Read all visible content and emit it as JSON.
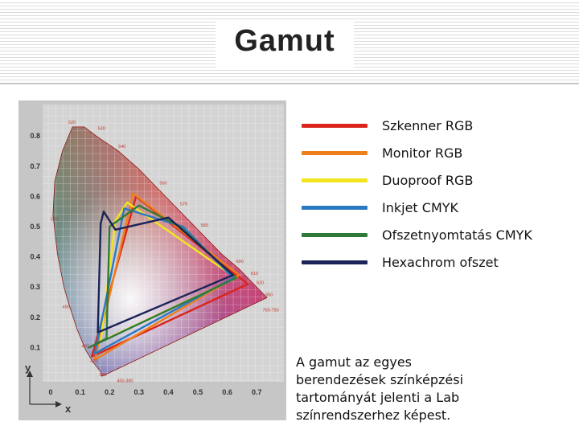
{
  "slide": {
    "title": "Gamut"
  },
  "legend": {
    "items": [
      {
        "label": "Szkenner RGB",
        "color": "#d9251c"
      },
      {
        "label": "Monitor RGB",
        "color": "#ef7f1a"
      },
      {
        "label": "Duoproof RGB",
        "color": "#f2e41f"
      },
      {
        "label": "Inkjet CMYK",
        "color": "#2a7ac2"
      },
      {
        "label": "Ofszetnyomtatás CMYK",
        "color": "#2f7a3a"
      },
      {
        "label": "Hexachrom ofszet",
        "color": "#1b2458"
      }
    ]
  },
  "caption": {
    "lines": [
      "A gamut az egyes",
      "berendezések színképzési",
      "tartományát jelenti a Lab",
      "színrendszerhez képest."
    ]
  },
  "chart_data": {
    "type": "scatter",
    "xlabel": "x",
    "ylabel": "y",
    "xlim": [
      0,
      0.8
    ],
    "ylim": [
      0,
      0.9
    ],
    "x_ticks": [
      "0",
      "0.1",
      "0.2",
      "0.3",
      "0.4",
      "0.5",
      "0.6",
      "0.7"
    ],
    "y_ticks": [
      "0.1",
      "0.2",
      "0.3",
      "0.4",
      "0.5",
      "0.6",
      "0.7",
      "0.8"
    ],
    "wavelength_labels": [
      "380",
      "470",
      "480",
      "490",
      "500",
      "520",
      "530",
      "540",
      "560",
      "570",
      "580",
      "600",
      "610",
      "620",
      "650",
      "700-750",
      "400-380"
    ],
    "locus": [
      [
        0.175,
        0.005
      ],
      [
        0.174,
        0.005
      ],
      [
        0.17,
        0.02
      ],
      [
        0.145,
        0.05
      ],
      [
        0.12,
        0.09
      ],
      [
        0.09,
        0.16
      ],
      [
        0.06,
        0.25
      ],
      [
        0.045,
        0.3
      ],
      [
        0.023,
        0.41
      ],
      [
        0.008,
        0.54
      ],
      [
        0.014,
        0.65
      ],
      [
        0.04,
        0.75
      ],
      [
        0.074,
        0.83
      ],
      [
        0.114,
        0.83
      ],
      [
        0.155,
        0.8
      ],
      [
        0.23,
        0.75
      ],
      [
        0.3,
        0.69
      ],
      [
        0.37,
        0.62
      ],
      [
        0.44,
        0.55
      ],
      [
        0.51,
        0.48
      ],
      [
        0.58,
        0.41
      ],
      [
        0.64,
        0.36
      ],
      [
        0.69,
        0.31
      ],
      [
        0.735,
        0.265
      ]
    ],
    "series": [
      {
        "name": "Szkenner RGB",
        "color": "#d9251c",
        "points": [
          [
            0.67,
            0.31
          ],
          [
            0.29,
            0.6
          ],
          [
            0.14,
            0.07
          ]
        ]
      },
      {
        "name": "Monitor RGB",
        "color": "#ef7f1a",
        "points": [
          [
            0.64,
            0.34
          ],
          [
            0.28,
            0.61
          ],
          [
            0.15,
            0.06
          ]
        ]
      },
      {
        "name": "Duoproof RGB",
        "color": "#f2e41f",
        "points": [
          [
            0.63,
            0.33
          ],
          [
            0.26,
            0.58
          ],
          [
            0.22,
            0.52
          ],
          [
            0.17,
            0.12
          ]
        ]
      },
      {
        "name": "Inkjet CMYK",
        "color": "#2a7ac2",
        "points": [
          [
            0.62,
            0.33
          ],
          [
            0.45,
            0.5
          ],
          [
            0.25,
            0.56
          ],
          [
            0.18,
            0.22
          ],
          [
            0.15,
            0.08
          ]
        ]
      },
      {
        "name": "Ofszetnyomtatás CMYK",
        "color": "#2f7a3a",
        "points": [
          [
            0.63,
            0.33
          ],
          [
            0.44,
            0.5
          ],
          [
            0.3,
            0.57
          ],
          [
            0.2,
            0.5
          ],
          [
            0.19,
            0.13
          ],
          [
            0.13,
            0.1
          ]
        ]
      },
      {
        "name": "Hexachrom ofszet",
        "color": "#1b2458",
        "points": [
          [
            0.62,
            0.34
          ],
          [
            0.4,
            0.53
          ],
          [
            0.22,
            0.49
          ],
          [
            0.18,
            0.55
          ],
          [
            0.17,
            0.51
          ],
          [
            0.16,
            0.15
          ]
        ]
      }
    ]
  }
}
